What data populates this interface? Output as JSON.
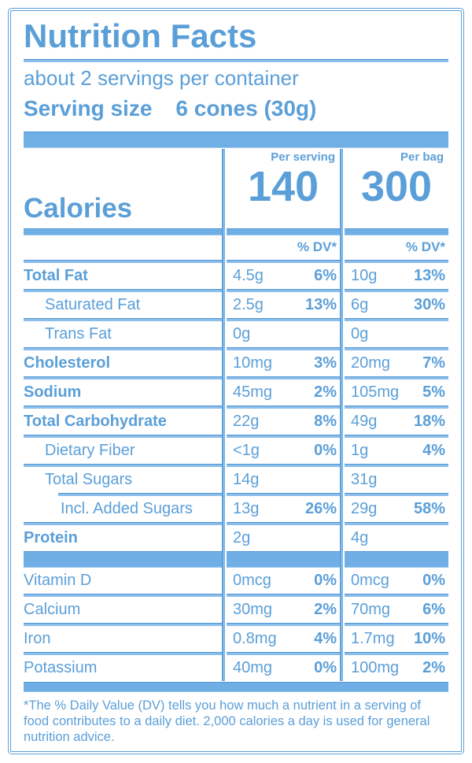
{
  "colors": {
    "text_blue": "#5b9fd8",
    "bar_blue": "#6fafe5",
    "edge_blue": "#4e95d4"
  },
  "label": {
    "title": "Nutrition Facts",
    "servings_per_container": "about 2 servings per container",
    "serving_size_label": "Serving size",
    "serving_size_value": "6 cones (30g)",
    "calories_label": "Calories",
    "col1_header": "Per serving",
    "col1_calories": "140",
    "col2_header": "Per bag",
    "col2_calories": "300",
    "dv_header": "% DV*",
    "nutrients": [
      {
        "name": "Total Fat",
        "a1": "4.5g",
        "p1": "6%",
        "a2": "10g",
        "p2": "13%"
      },
      {
        "name": "Saturated Fat",
        "a1": "2.5g",
        "p1": "13%",
        "a2": "6g",
        "p2": "30%"
      },
      {
        "name": "Trans Fat",
        "a1": "0g",
        "p1": "",
        "a2": "0g",
        "p2": ""
      },
      {
        "name": "Cholesterol",
        "a1": "10mg",
        "p1": "3%",
        "a2": "20mg",
        "p2": "7%"
      },
      {
        "name": "Sodium",
        "a1": "45mg",
        "p1": "2%",
        "a2": "105mg",
        "p2": "5%"
      },
      {
        "name": "Total Carbohydrate",
        "a1": "22g",
        "p1": "8%",
        "a2": "49g",
        "p2": "18%"
      },
      {
        "name": "Dietary Fiber",
        "a1": "<1g",
        "p1": "0%",
        "a2": "1g",
        "p2": "4%"
      },
      {
        "name": "Total Sugars",
        "a1": "14g",
        "p1": "",
        "a2": "31g",
        "p2": ""
      },
      {
        "name": "Incl. Added Sugars",
        "a1": "13g",
        "p1": "26%",
        "a2": "29g",
        "p2": "58%"
      },
      {
        "name": "Protein",
        "a1": "2g",
        "p1": "",
        "a2": "4g",
        "p2": ""
      }
    ],
    "minerals": [
      {
        "name": "Vitamin D",
        "a1": "0mcg",
        "p1": "0%",
        "a2": "0mcg",
        "p2": "0%"
      },
      {
        "name": "Calcium",
        "a1": "30mg",
        "p1": "2%",
        "a2": "70mg",
        "p2": "6%"
      },
      {
        "name": "Iron",
        "a1": "0.8mg",
        "p1": "4%",
        "a2": "1.7mg",
        "p2": "10%"
      },
      {
        "name": "Potassium",
        "a1": "40mg",
        "p1": "0%",
        "a2": "100mg",
        "p2": "2%"
      }
    ],
    "footnote": "*The % Daily Value (DV) tells you how much a nutrient in a serving of food contributes to a daily diet. 2,000 calories a day is used for general nutrition advice."
  }
}
